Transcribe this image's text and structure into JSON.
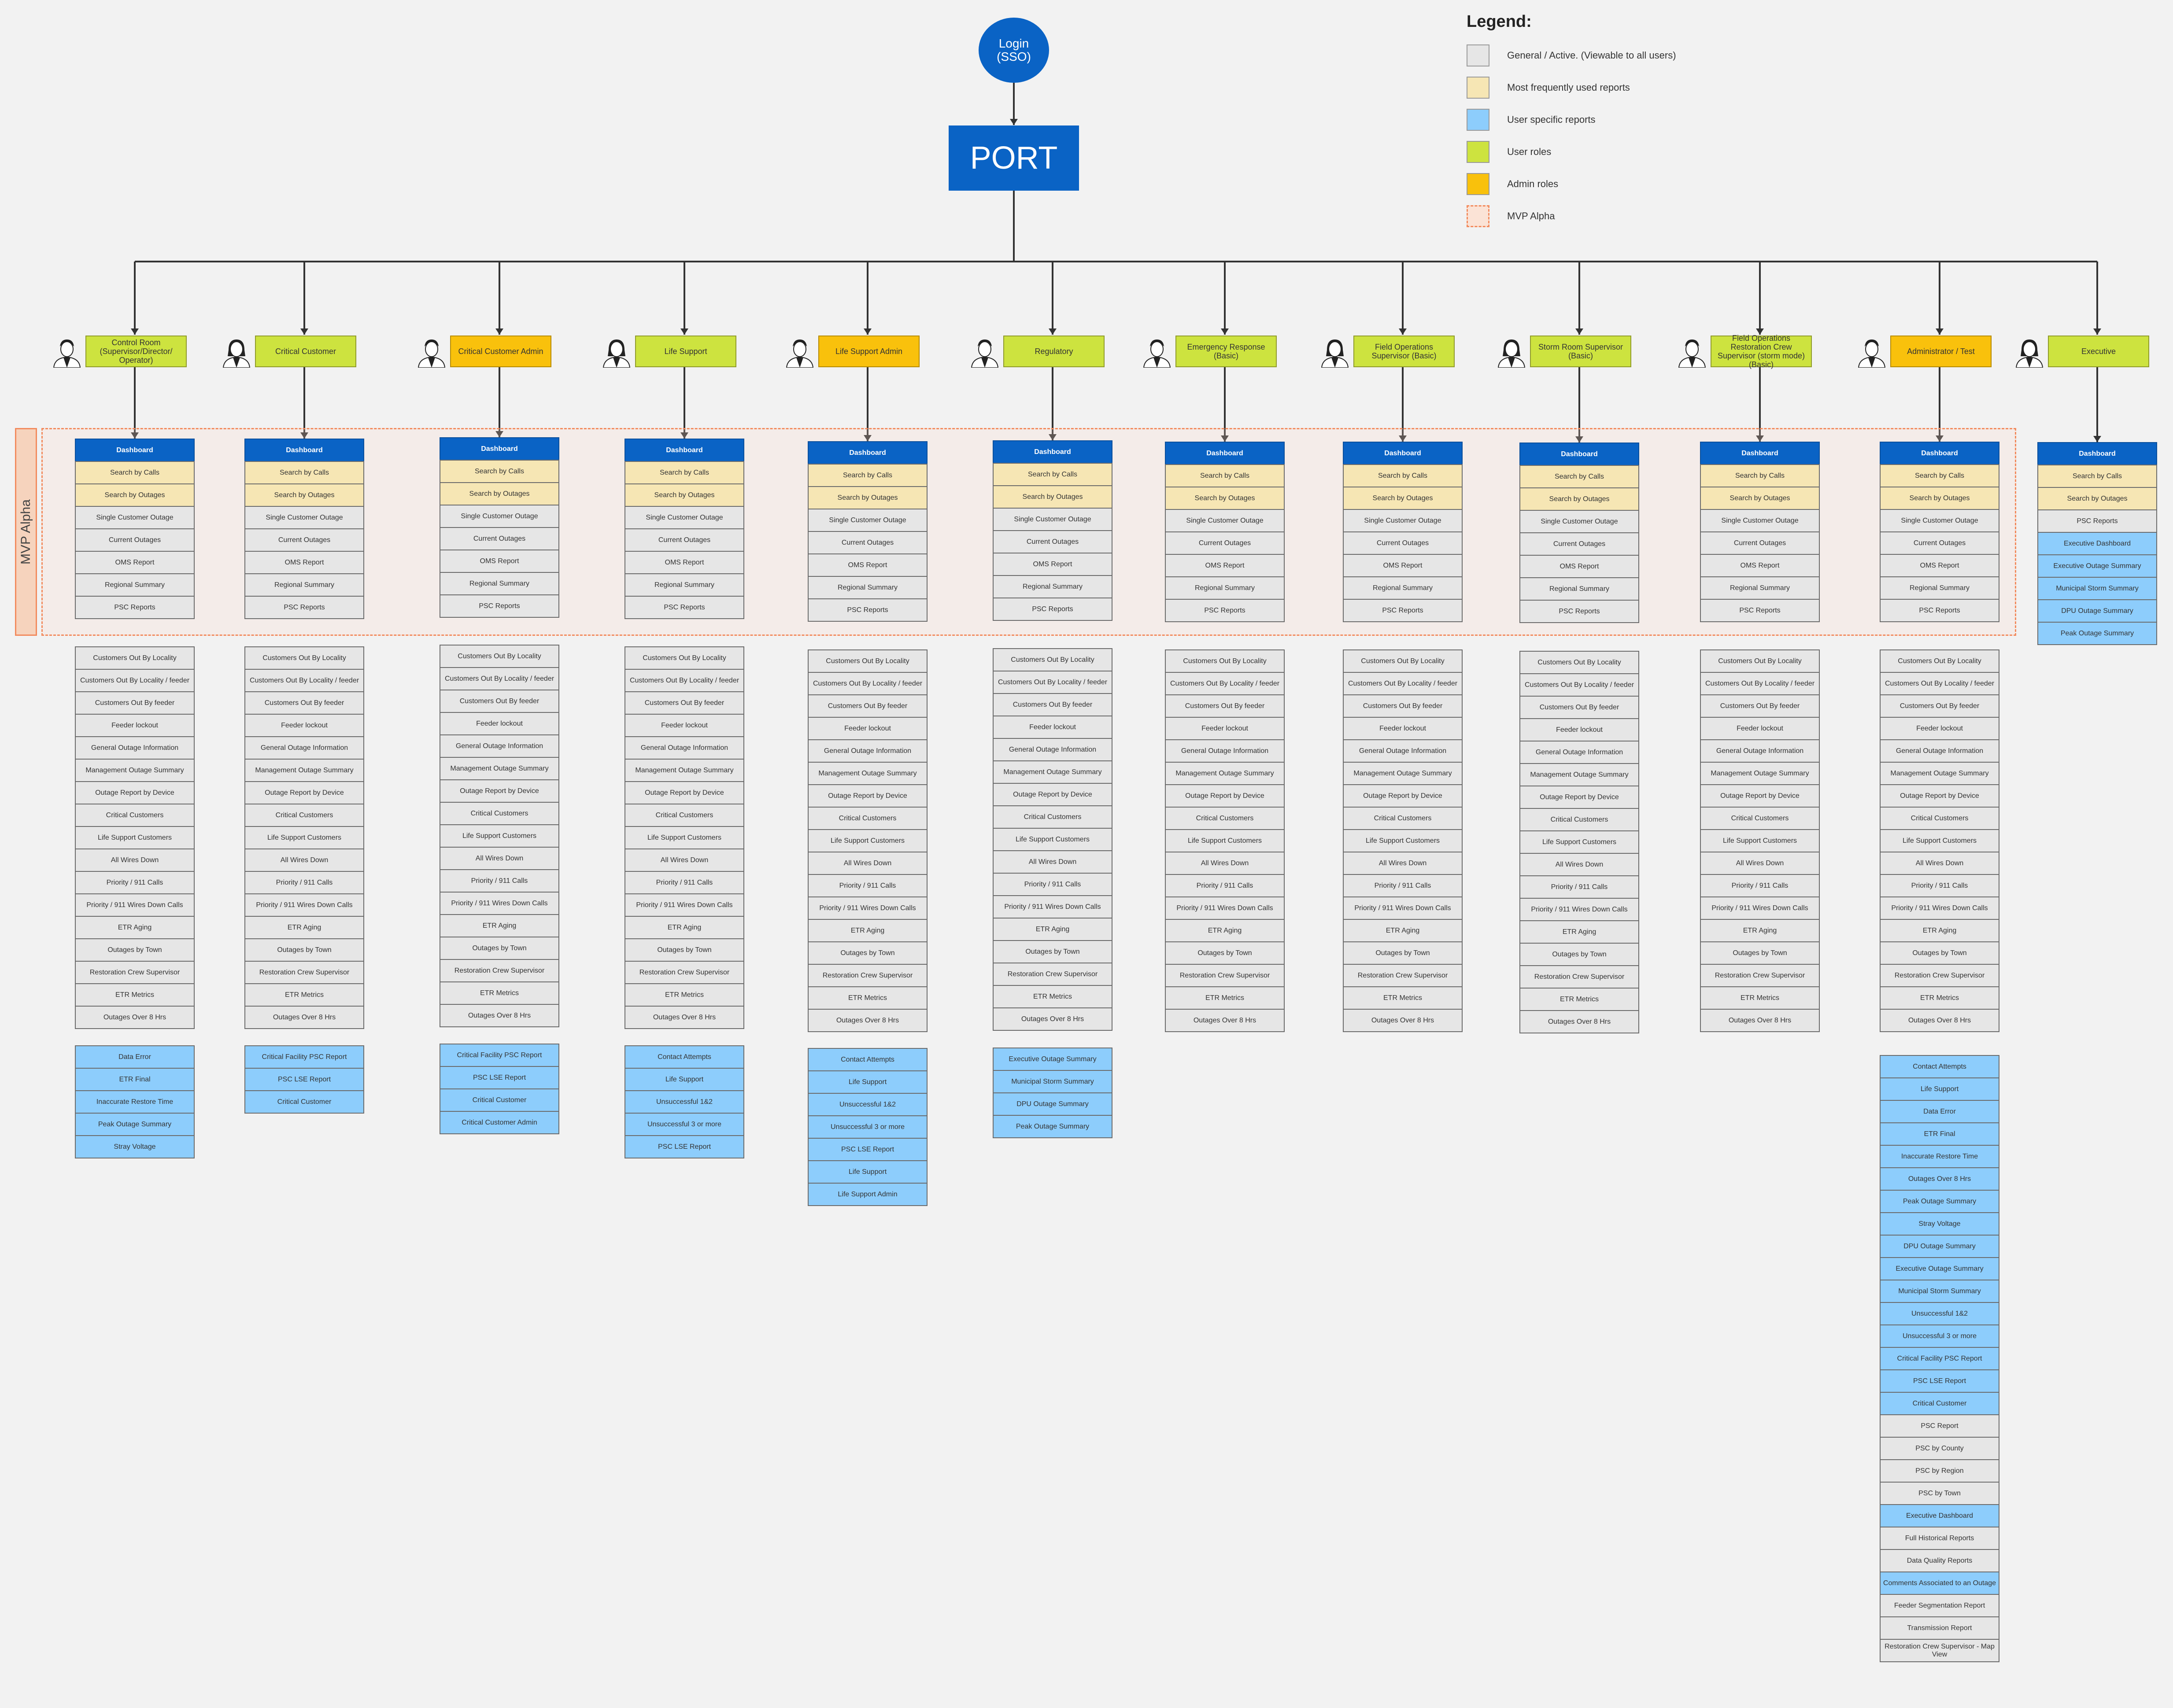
{
  "login": {
    "label": "Login\n(SSO)"
  },
  "port": {
    "label": "PORT"
  },
  "legend": {
    "title": "Legend:",
    "items": [
      {
        "label": "General / Active.  (Viewable to all users)",
        "color": "#e6e6e6"
      },
      {
        "label": "Most frequently used reports",
        "color": "#f6e6b4"
      },
      {
        "label": "User specific reports",
        "color": "#8dcdfc"
      },
      {
        "label": "User roles",
        "color": "#cde33f"
      },
      {
        "label": "Admin roles",
        "color": "#f9c10c"
      },
      {
        "label": "MVP Alpha",
        "color": "#fbe3d6"
      }
    ]
  },
  "mvp_label": "MVP Alpha",
  "colors": {
    "user_role": "#cde33f",
    "admin_role": "#f9c10c"
  },
  "roles": [
    {
      "name": "Control Room (Supervisor/Director/ Operator)",
      "type": "user",
      "avatar": "male-avatar",
      "mvp": [
        "Dashboard",
        "Search by Calls",
        "Search by Outages",
        "Single Customer Outage",
        "Current Outages",
        "OMS Report",
        "Regional Summary",
        "PSC Reports"
      ],
      "general": [
        "Customers Out By Locality",
        "Customers Out By Locality / feeder",
        "Customers Out By feeder",
        "Feeder lockout",
        "General Outage Information",
        "Management Outage Summary",
        "Outage Report by Device",
        "Critical Customers",
        "Life Support Customers",
        "All Wires Down",
        "Priority / 911 Calls",
        "Priority / 911 Wires Down Calls",
        "ETR Aging",
        "Outages by Town",
        "Restoration Crew Supervisor",
        "ETR Metrics",
        "Outages Over 8 Hrs"
      ],
      "specific": [
        "Data Error",
        "ETR Final",
        "Inaccurate Restore Time",
        "Peak Outage Summary",
        "Stray Voltage"
      ]
    },
    {
      "name": "Critical Customer",
      "type": "user",
      "avatar": "female-avatar",
      "mvp": [
        "Dashboard",
        "Search by Calls",
        "Search by Outages",
        "Single Customer Outage",
        "Current Outages",
        "OMS Report",
        "Regional Summary",
        "PSC Reports"
      ],
      "general": [
        "Customers Out By Locality",
        "Customers Out By Locality / feeder",
        "Customers Out By feeder",
        "Feeder lockout",
        "General Outage Information",
        "Management Outage Summary",
        "Outage Report by Device",
        "Critical Customers",
        "Life Support Customers",
        "All Wires Down",
        "Priority / 911 Calls",
        "Priority / 911 Wires Down Calls",
        "ETR Aging",
        "Outages by Town",
        "Restoration Crew Supervisor",
        "ETR Metrics",
        "Outages Over 8 Hrs"
      ],
      "specific": [
        "Critical Facility PSC Report",
        "PSC LSE Report",
        "Critical Customer"
      ]
    },
    {
      "name": "Critical Customer Admin",
      "type": "admin",
      "avatar": "male-avatar",
      "mvp": [
        "Dashboard",
        "Search by Calls",
        "Search by Outages",
        "Single Customer Outage",
        "Current Outages",
        "OMS Report",
        "Regional Summary",
        "PSC Reports"
      ],
      "general": [
        "Customers Out By Locality",
        "Customers Out By Locality / feeder",
        "Customers Out By feeder",
        "Feeder lockout",
        "General Outage Information",
        "Management Outage Summary",
        "Outage Report by Device",
        "Critical Customers",
        "Life Support Customers",
        "All Wires Down",
        "Priority / 911 Calls",
        "Priority / 911 Wires Down Calls",
        "ETR Aging",
        "Outages by Town",
        "Restoration Crew Supervisor",
        "ETR Metrics",
        "Outages Over 8 Hrs"
      ],
      "specific": [
        "Critical Facility PSC Report",
        "PSC LSE Report",
        "Critical Customer",
        "Critical Customer Admin"
      ]
    },
    {
      "name": "Life Support",
      "type": "user",
      "avatar": "female-avatar",
      "mvp": [
        "Dashboard",
        "Search by Calls",
        "Search by Outages",
        "Single Customer Outage",
        "Current Outages",
        "OMS Report",
        "Regional Summary",
        "PSC Reports"
      ],
      "general": [
        "Customers Out By Locality",
        "Customers Out By Locality / feeder",
        "Customers Out By feeder",
        "Feeder lockout",
        "General Outage Information",
        "Management Outage Summary",
        "Outage Report by Device",
        "Critical Customers",
        "Life Support Customers",
        "All Wires Down",
        "Priority / 911 Calls",
        "Priority / 911 Wires Down Calls",
        "ETR Aging",
        "Outages by Town",
        "Restoration Crew Supervisor",
        "ETR Metrics",
        "Outages Over 8 Hrs"
      ],
      "specific": [
        "Contact Attempts",
        "Life Support",
        "Unsuccessful 1&2",
        "Unsuccessful 3 or more",
        "PSC LSE Report"
      ]
    },
    {
      "name": "Life Support Admin",
      "type": "admin",
      "avatar": "male-avatar",
      "mvp": [
        "Dashboard",
        "Search by Calls",
        "Search by Outages",
        "Single Customer Outage",
        "Current Outages",
        "OMS Report",
        "Regional Summary",
        "PSC Reports"
      ],
      "general": [
        "Customers Out By Locality",
        "Customers Out By Locality / feeder",
        "Customers Out By feeder",
        "Feeder lockout",
        "General Outage Information",
        "Management Outage Summary",
        "Outage Report by Device",
        "Critical Customers",
        "Life Support Customers",
        "All Wires Down",
        "Priority / 911 Calls",
        "Priority / 911 Wires Down Calls",
        "ETR Aging",
        "Outages by Town",
        "Restoration Crew Supervisor",
        "ETR Metrics",
        "Outages Over 8 Hrs"
      ],
      "specific": [
        "Contact Attempts",
        "Life Support",
        "Unsuccessful 1&2",
        "Unsuccessful 3 or more",
        "PSC LSE Report",
        "Life Support",
        "Life Support Admin"
      ]
    },
    {
      "name": "Regulatory",
      "type": "user",
      "avatar": "male-avatar",
      "mvp": [
        "Dashboard",
        "Search by Calls",
        "Search by Outages",
        "Single Customer Outage",
        "Current Outages",
        "OMS Report",
        "Regional Summary",
        "PSC Reports"
      ],
      "general": [
        "Customers Out By Locality",
        "Customers Out By Locality / feeder",
        "Customers Out By feeder",
        "Feeder lockout",
        "General Outage Information",
        "Management Outage Summary",
        "Outage Report by Device",
        "Critical Customers",
        "Life Support Customers",
        "All Wires Down",
        "Priority / 911 Calls",
        "Priority / 911 Wires Down Calls",
        "ETR Aging",
        "Outages by Town",
        "Restoration Crew Supervisor",
        "ETR Metrics",
        "Outages Over 8 Hrs"
      ],
      "specific": [
        "Executive Outage Summary",
        "Municipal Storm Summary",
        "DPU Outage Summary",
        "Peak Outage Summary"
      ]
    },
    {
      "name": "Emergency Response (Basic)",
      "type": "user",
      "avatar": "male-avatar",
      "mvp": [
        "Dashboard",
        "Search by Calls",
        "Search by Outages",
        "Single Customer Outage",
        "Current Outages",
        "OMS Report",
        "Regional Summary",
        "PSC Reports"
      ],
      "general": [
        "Customers Out By Locality",
        "Customers Out By Locality / feeder",
        "Customers Out By feeder",
        "Feeder lockout",
        "General Outage Information",
        "Management Outage Summary",
        "Outage Report by Device",
        "Critical Customers",
        "Life Support Customers",
        "All Wires Down",
        "Priority / 911 Calls",
        "Priority / 911 Wires Down Calls",
        "ETR Aging",
        "Outages by Town",
        "Restoration Crew Supervisor",
        "ETR Metrics",
        "Outages Over 8 Hrs"
      ],
      "specific": []
    },
    {
      "name": "Field Operations Supervisor (Basic)",
      "type": "user",
      "avatar": "female-avatar",
      "mvp": [
        "Dashboard",
        "Search by Calls",
        "Search by Outages",
        "Single Customer Outage",
        "Current Outages",
        "OMS Report",
        "Regional Summary",
        "PSC Reports"
      ],
      "general": [
        "Customers Out By Locality",
        "Customers Out By Locality / feeder",
        "Customers Out By feeder",
        "Feeder lockout",
        "General Outage Information",
        "Management Outage Summary",
        "Outage Report by Device",
        "Critical Customers",
        "Life Support Customers",
        "All Wires Down",
        "Priority / 911 Calls",
        "Priority / 911 Wires Down Calls",
        "ETR Aging",
        "Outages by Town",
        "Restoration Crew Supervisor",
        "ETR Metrics",
        "Outages Over 8 Hrs"
      ],
      "specific": []
    },
    {
      "name": "Storm Room Supervisor (Basic)",
      "type": "user",
      "avatar": "female-avatar",
      "mvp": [
        "Dashboard",
        "Search by Calls",
        "Search by Outages",
        "Single Customer Outage",
        "Current Outages",
        "OMS Report",
        "Regional Summary",
        "PSC Reports"
      ],
      "general": [
        "Customers Out By Locality",
        "Customers Out By Locality / feeder",
        "Customers Out By feeder",
        "Feeder lockout",
        "General Outage Information",
        "Management Outage Summary",
        "Outage Report by Device",
        "Critical Customers",
        "Life Support Customers",
        "All Wires Down",
        "Priority / 911 Calls",
        "Priority / 911 Wires Down Calls",
        "ETR Aging",
        "Outages by Town",
        "Restoration Crew Supervisor",
        "ETR Metrics",
        "Outages Over 8 Hrs"
      ],
      "specific": []
    },
    {
      "name": "Field Operations Restoration Crew Supervisor (storm mode) (Basic)",
      "type": "user",
      "avatar": "male-avatar",
      "mvp": [
        "Dashboard",
        "Search by Calls",
        "Search by Outages",
        "Single Customer Outage",
        "Current Outages",
        "OMS Report",
        "Regional Summary",
        "PSC Reports"
      ],
      "general": [
        "Customers Out By Locality",
        "Customers Out By Locality / feeder",
        "Customers Out By feeder",
        "Feeder lockout",
        "General Outage Information",
        "Management Outage Summary",
        "Outage Report by Device",
        "Critical Customers",
        "Life Support Customers",
        "All Wires Down",
        "Priority / 911 Calls",
        "Priority / 911 Wires Down Calls",
        "ETR Aging",
        "Outages by Town",
        "Restoration Crew Supervisor",
        "ETR Metrics",
        "Outages Over 8 Hrs"
      ],
      "specific": []
    },
    {
      "name": "Administrator / Test",
      "type": "admin",
      "avatar": "male-avatar",
      "mvp": [
        "Dashboard",
        "Search by Calls",
        "Search by Outages",
        "Single Customer Outage",
        "Current Outages",
        "OMS Report",
        "Regional Summary",
        "PSC Reports"
      ],
      "general": [
        "Customers Out By Locality",
        "Customers Out By Locality / feeder",
        "Customers Out By feeder",
        "Feeder lockout",
        "General Outage Information",
        "Management Outage Summary",
        "Outage Report by Device",
        "Critical Customers",
        "Life Support Customers",
        "All Wires Down",
        "Priority / 911 Calls",
        "Priority / 911 Wires Down Calls",
        "ETR Aging",
        "Outages by Town",
        "Restoration Crew Supervisor",
        "ETR Metrics",
        "Outages Over 8 Hrs"
      ],
      "specific": [
        {
          "label": "Contact Attempts",
          "kind": "user"
        },
        {
          "label": "Life Support",
          "kind": "user"
        },
        {
          "label": "Data Error",
          "kind": "user"
        },
        {
          "label": "ETR Final",
          "kind": "user"
        },
        {
          "label": "Inaccurate Restore Time",
          "kind": "user"
        },
        {
          "label": "Outages Over 8 Hrs",
          "kind": "user"
        },
        {
          "label": "Peak Outage Summary",
          "kind": "user"
        },
        {
          "label": "Stray Voltage",
          "kind": "user"
        },
        {
          "label": "DPU Outage Summary",
          "kind": "user"
        },
        {
          "label": "Executive Outage Summary",
          "kind": "user"
        },
        {
          "label": "Municipal Storm Summary",
          "kind": "user"
        },
        {
          "label": "Unsuccessful 1&2",
          "kind": "user"
        },
        {
          "label": "Unsuccessful 3 or more",
          "kind": "user"
        },
        {
          "label": "Critical Facility PSC Report",
          "kind": "user"
        },
        {
          "label": "PSC LSE Report",
          "kind": "user"
        },
        {
          "label": "Critical Customer",
          "kind": "user"
        },
        {
          "label": "PSC Report",
          "kind": "gen"
        },
        {
          "label": "PSC by County",
          "kind": "gen"
        },
        {
          "label": "PSC by Region",
          "kind": "gen"
        },
        {
          "label": "PSC by Town",
          "kind": "gen"
        },
        {
          "label": "Executive Dashboard",
          "kind": "user"
        },
        {
          "label": "Full Historical Reports",
          "kind": "gen"
        },
        {
          "label": "Data Quality Reports",
          "kind": "gen"
        },
        {
          "label": "Comments Associated to an Outage",
          "kind": "user"
        },
        {
          "label": "Feeder Segmentation Report",
          "kind": "gen"
        },
        {
          "label": "Transmission Report",
          "kind": "gen"
        },
        {
          "label": "Restoration Crew Supervisor - Map View",
          "kind": "gen"
        }
      ]
    },
    {
      "name": "Executive",
      "type": "user",
      "avatar": "female-avatar",
      "mvp": [
        "Dashboard",
        "Search by Calls",
        "Search by Outages"
      ],
      "general": [],
      "exec_list": [
        {
          "label": "PSC Reports",
          "kind": "gen"
        },
        {
          "label": "Executive Dashboard",
          "kind": "user"
        },
        {
          "label": "Executive Outage Summary",
          "kind": "user"
        },
        {
          "label": "Municipal Storm Summary",
          "kind": "user"
        },
        {
          "label": "DPU Outage Summary",
          "kind": "user"
        },
        {
          "label": "Peak Outage Summary",
          "kind": "user"
        }
      ],
      "specific": []
    }
  ]
}
